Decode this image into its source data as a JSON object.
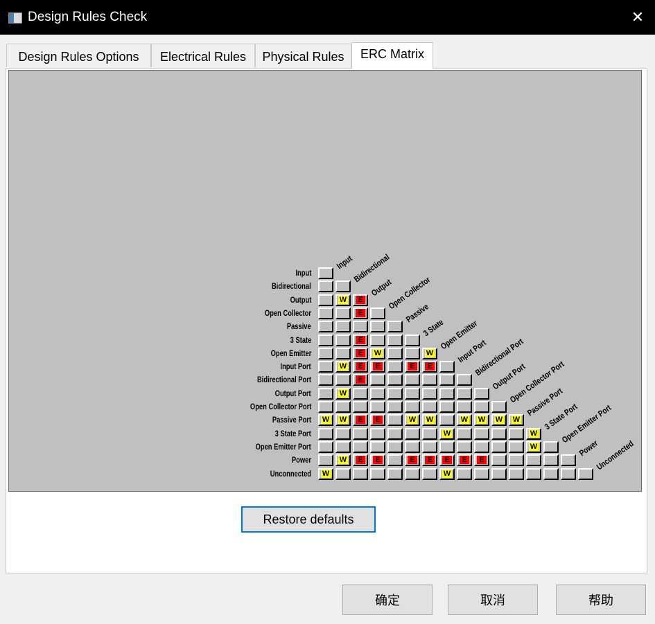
{
  "window": {
    "title": "Design Rules Check",
    "close_glyph": "✕",
    "icon": "app-window-icon"
  },
  "tabs": [
    {
      "label": "Design Rules Options",
      "active": false
    },
    {
      "label": "Electrical Rules",
      "active": false
    },
    {
      "label": "Physical Rules",
      "active": false
    },
    {
      "label": "ERC Matrix",
      "active": true
    }
  ],
  "matrix": {
    "pins": [
      "Input",
      "Bidirectional",
      "Output",
      "Open Collector",
      "Passive",
      "3 State",
      "Open Emitter",
      "Input Port",
      "Bidirectional Port",
      "Output Port",
      "Open Collector Port",
      "Passive Port",
      "3 State Port",
      "Open Emitter Port",
      "Power",
      "Unconnected"
    ],
    "cells": [
      "",
      "..",
      ".WE",
      "..E.",
      ".....",
      "..E...",
      "..EW..W",
      ".WEE.EE.",
      "..E......",
      ".W........",
      "...........",
      "WWEE.WW.WWWW",
      ".......W....W",
      "............W.",
      ".WEE.EEEEE.....",
      "W......W........"
    ],
    "legend": {
      "W": "W",
      "E": "E"
    },
    "colors": {
      "warning": "#ffff00",
      "error": "#ff0000",
      "cell": "#c0c0c0"
    }
  },
  "restore_label": "Restore defaults",
  "buttons": {
    "ok": "确定",
    "cancel": "取消",
    "help": "帮助"
  }
}
